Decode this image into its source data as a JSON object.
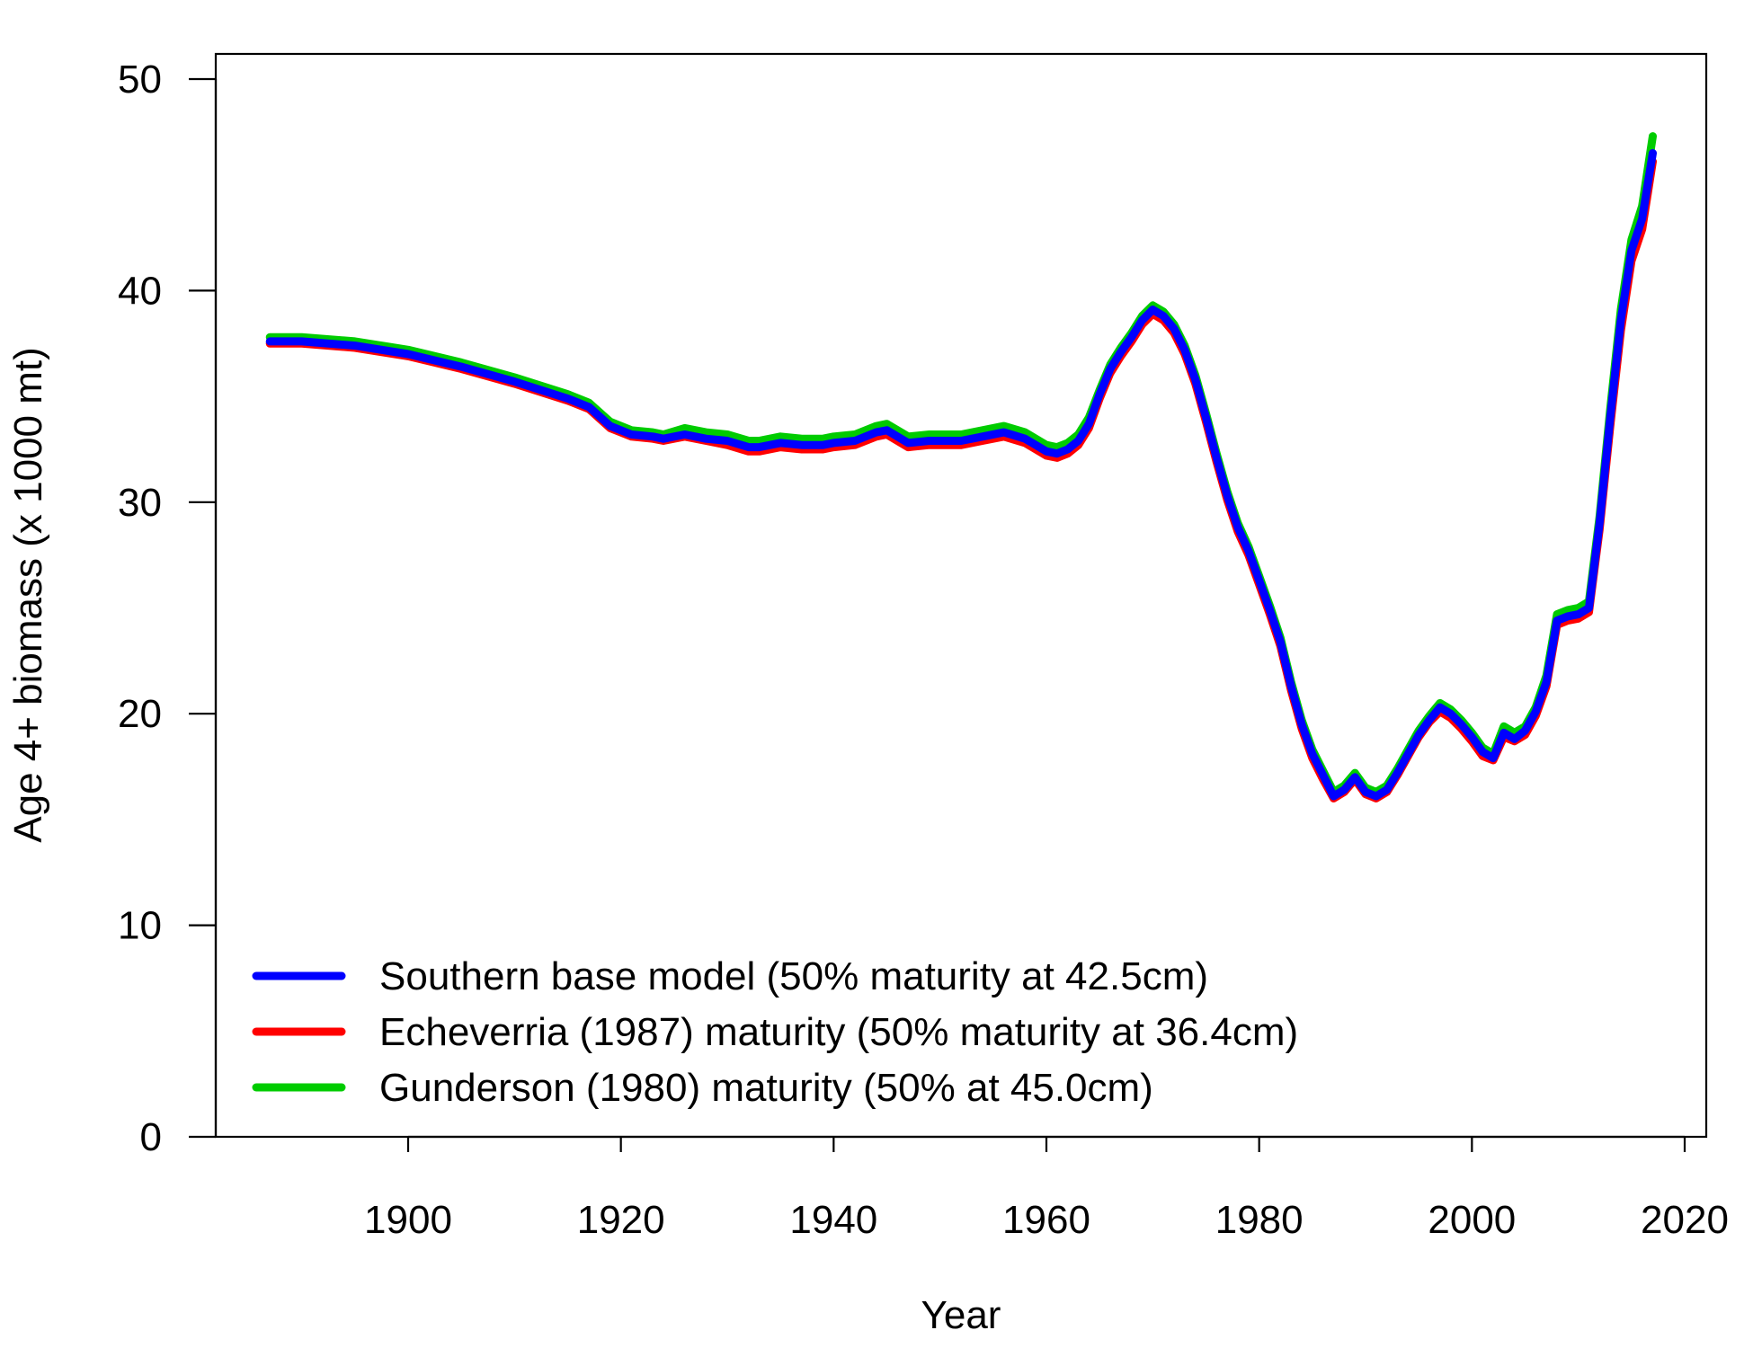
{
  "chart_data": {
    "type": "line",
    "title": "",
    "xlabel": "Year",
    "ylabel": "Age 4+ biomass (x 1000 mt)",
    "xlim": [
      1880,
      2020
    ],
    "ylim": [
      0,
      50
    ],
    "x_ticks": [
      1900,
      1920,
      1940,
      1960,
      1980,
      2000,
      2020
    ],
    "y_ticks": [
      0,
      10,
      20,
      30,
      40,
      50
    ],
    "x_tick_labels": [
      "1900",
      "1920",
      "1940",
      "1960",
      "1980",
      "2000",
      "2020"
    ],
    "y_tick_labels": [
      "0",
      "10",
      "20",
      "30",
      "40",
      "50"
    ],
    "grid": false,
    "legend_position": "bottom-left",
    "x": [
      1887,
      1890,
      1895,
      1900,
      1905,
      1910,
      1915,
      1917,
      1919,
      1921,
      1923,
      1924,
      1926,
      1928,
      1930,
      1932,
      1933,
      1935,
      1937,
      1939,
      1940,
      1942,
      1944,
      1945,
      1947,
      1949,
      1950,
      1952,
      1954,
      1956,
      1958,
      1960,
      1961,
      1962,
      1963,
      1964,
      1965,
      1966,
      1967,
      1968,
      1969,
      1970,
      1971,
      1972,
      1973,
      1974,
      1975,
      1976,
      1977,
      1978,
      1979,
      1980,
      1981,
      1982,
      1983,
      1984,
      1985,
      1986,
      1987,
      1988,
      1989,
      1990,
      1991,
      1992,
      1993,
      1994,
      1995,
      1996,
      1997,
      1998,
      1999,
      2000,
      2001,
      2002,
      2003,
      2004,
      2005,
      2006,
      2007,
      2008,
      2009,
      2010,
      2011,
      2012,
      2013,
      2014,
      2015,
      2016,
      2017
    ],
    "series": [
      {
        "name": "Southern base model (50% maturity at 42.5cm)",
        "color": "#0000FF",
        "values": [
          37.6,
          37.6,
          37.4,
          37.0,
          36.4,
          35.7,
          34.9,
          34.5,
          33.6,
          33.2,
          33.1,
          33.0,
          33.2,
          33.0,
          32.9,
          32.6,
          32.6,
          32.8,
          32.7,
          32.7,
          32.8,
          32.9,
          33.3,
          33.4,
          32.8,
          32.9,
          32.9,
          32.9,
          33.1,
          33.3,
          33.0,
          32.4,
          32.3,
          32.5,
          32.9,
          33.7,
          35.1,
          36.3,
          37.1,
          37.8,
          38.6,
          39.1,
          38.8,
          38.2,
          37.2,
          35.8,
          34.0,
          32.1,
          30.3,
          28.8,
          27.7,
          26.3,
          24.9,
          23.4,
          21.3,
          19.5,
          18.1,
          17.1,
          16.1,
          16.4,
          17.0,
          16.3,
          16.1,
          16.4,
          17.2,
          18.1,
          19.0,
          19.7,
          20.3,
          20.0,
          19.5,
          18.9,
          18.2,
          17.9,
          19.1,
          18.8,
          19.2,
          20.1,
          21.5,
          24.4,
          24.6,
          24.7,
          25.0,
          29.0,
          34.0,
          38.6,
          41.9,
          43.4,
          46.5
        ]
      },
      {
        "name": "Echeverria (1987) maturity (50% maturity at 36.4cm)",
        "color": "#FF0000",
        "values": [
          37.5,
          37.5,
          37.3,
          36.9,
          36.3,
          35.6,
          34.8,
          34.4,
          33.5,
          33.1,
          33.0,
          32.9,
          33.1,
          32.9,
          32.7,
          32.4,
          32.4,
          32.6,
          32.5,
          32.5,
          32.6,
          32.7,
          33.1,
          33.2,
          32.6,
          32.7,
          32.7,
          32.7,
          32.9,
          33.1,
          32.8,
          32.2,
          32.1,
          32.3,
          32.7,
          33.5,
          34.9,
          36.1,
          36.9,
          37.6,
          38.4,
          38.9,
          38.6,
          38.0,
          37.0,
          35.6,
          33.8,
          31.9,
          30.1,
          28.6,
          27.5,
          26.1,
          24.7,
          23.2,
          21.1,
          19.3,
          17.9,
          16.9,
          16.0,
          16.3,
          16.9,
          16.2,
          16.0,
          16.3,
          17.1,
          18.0,
          18.9,
          19.6,
          20.1,
          19.8,
          19.3,
          18.7,
          18.0,
          17.8,
          18.9,
          18.7,
          19.0,
          19.9,
          21.3,
          24.2,
          24.4,
          24.5,
          24.8,
          28.7,
          33.6,
          38.1,
          41.4,
          42.9,
          46.1
        ]
      },
      {
        "name": "Gunderson (1980) maturity (50% at 45.0cm)",
        "color": "#00CC00",
        "values": [
          37.8,
          37.8,
          37.6,
          37.2,
          36.6,
          35.9,
          35.1,
          34.7,
          33.8,
          33.4,
          33.3,
          33.2,
          33.5,
          33.3,
          33.2,
          32.9,
          32.9,
          33.1,
          33.0,
          33.0,
          33.1,
          33.2,
          33.6,
          33.7,
          33.1,
          33.2,
          33.2,
          33.2,
          33.4,
          33.6,
          33.3,
          32.7,
          32.6,
          32.8,
          33.2,
          34.0,
          35.3,
          36.5,
          37.3,
          38.0,
          38.8,
          39.3,
          39.0,
          38.4,
          37.4,
          36.0,
          34.2,
          32.3,
          30.5,
          29.0,
          27.9,
          26.5,
          25.1,
          23.6,
          21.5,
          19.7,
          18.3,
          17.3,
          16.3,
          16.6,
          17.2,
          16.5,
          16.3,
          16.6,
          17.4,
          18.3,
          19.2,
          19.9,
          20.5,
          20.2,
          19.7,
          19.1,
          18.4,
          18.1,
          19.4,
          19.1,
          19.4,
          20.3,
          21.8,
          24.7,
          24.9,
          25.0,
          25.3,
          29.3,
          34.4,
          39.1,
          42.4,
          44.0,
          47.3
        ]
      }
    ]
  }
}
